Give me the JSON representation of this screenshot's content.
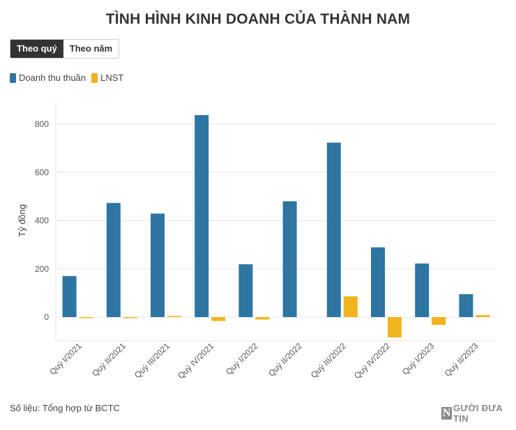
{
  "title": "TÌNH HÌNH KINH DOANH CỦA THÀNH NAM",
  "toggle": {
    "quarter_label": "Theo quý",
    "year_label": "Theo năm"
  },
  "source": "Số liệu: Tổng hợp từ BCTC",
  "logo": {
    "mark": "N",
    "text": "GƯỜI ĐƯA TIN"
  },
  "colors": {
    "revenue": "#2e75a1",
    "profit": "#f0b41d"
  },
  "chart_data": {
    "type": "bar",
    "title": "TÌNH HÌNH KINH DOANH CỦA THÀNH NAM",
    "xlabel": "",
    "ylabel": "Tỷ đồng",
    "ylim": [
      -100,
      900
    ],
    "yticks": [
      0,
      200,
      400,
      600,
      800
    ],
    "grid": true,
    "legend_position": "top-left",
    "categories": [
      "Quý I/2021",
      "Quý II/2021",
      "Quý III/2021",
      "Quý IV/2021",
      "Quý I/2022",
      "Quý II/2022",
      "Quý III/2022",
      "Quý IV/2022",
      "Quý I/2023",
      "Quý II/2023"
    ],
    "series": [
      {
        "name": "Doanh thu thuần",
        "color": "#2e75a1",
        "values": [
          170,
          473,
          429,
          837,
          219,
          480,
          723,
          289,
          222,
          95
        ]
      },
      {
        "name": "LNST",
        "color": "#f0b41d",
        "values": [
          -4,
          -2,
          3,
          -16,
          -10,
          0,
          86,
          -84,
          -32,
          8
        ]
      }
    ]
  }
}
